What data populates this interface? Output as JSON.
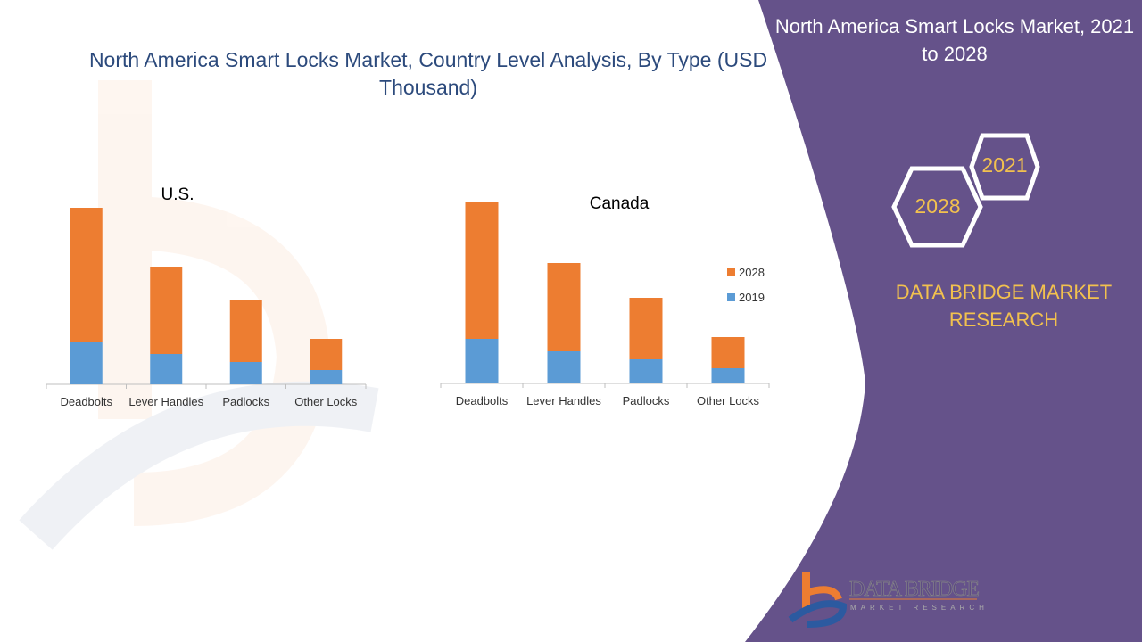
{
  "title": "North America Smart Locks Market, Country Level Analysis, By Type (USD Thousand)",
  "panel": {
    "title": "North America Smart Locks Market, 2021 to 2028",
    "hex_years": [
      "2021",
      "2028"
    ],
    "brand": "DATA BRIDGE MARKET RESEARCH",
    "logo_text": "DATA BRIDGE",
    "logo_subtext": "MARKET RESEARCH",
    "color": "#65528a",
    "accent": "#f2c14e"
  },
  "chart_data": [
    {
      "type": "bar",
      "stacked": true,
      "title": "U.S.",
      "categories": [
        "Deadbolts",
        "Lever Handles",
        "Padlocks",
        "Other Locks"
      ],
      "series": [
        {
          "name": "2019",
          "color": "#5b9bd5",
          "values": [
            48,
            34,
            25,
            16
          ]
        },
        {
          "name": "2028",
          "color": "#ed7d31",
          "values": [
            150,
            98,
            69,
            35
          ]
        }
      ],
      "y_axis_shown": false,
      "grid": false,
      "legend": "none"
    },
    {
      "type": "bar",
      "stacked": true,
      "title": "Canada",
      "categories": [
        "Deadbolts",
        "Lever Handles",
        "Padlocks",
        "Other Locks"
      ],
      "series": [
        {
          "name": "2019",
          "color": "#5b9bd5",
          "values": [
            50,
            36,
            27,
            17
          ]
        },
        {
          "name": "2028",
          "color": "#ed7d31",
          "values": [
            154,
            99,
            69,
            35
          ]
        }
      ],
      "y_axis_shown": false,
      "grid": false,
      "legend": "right"
    }
  ]
}
